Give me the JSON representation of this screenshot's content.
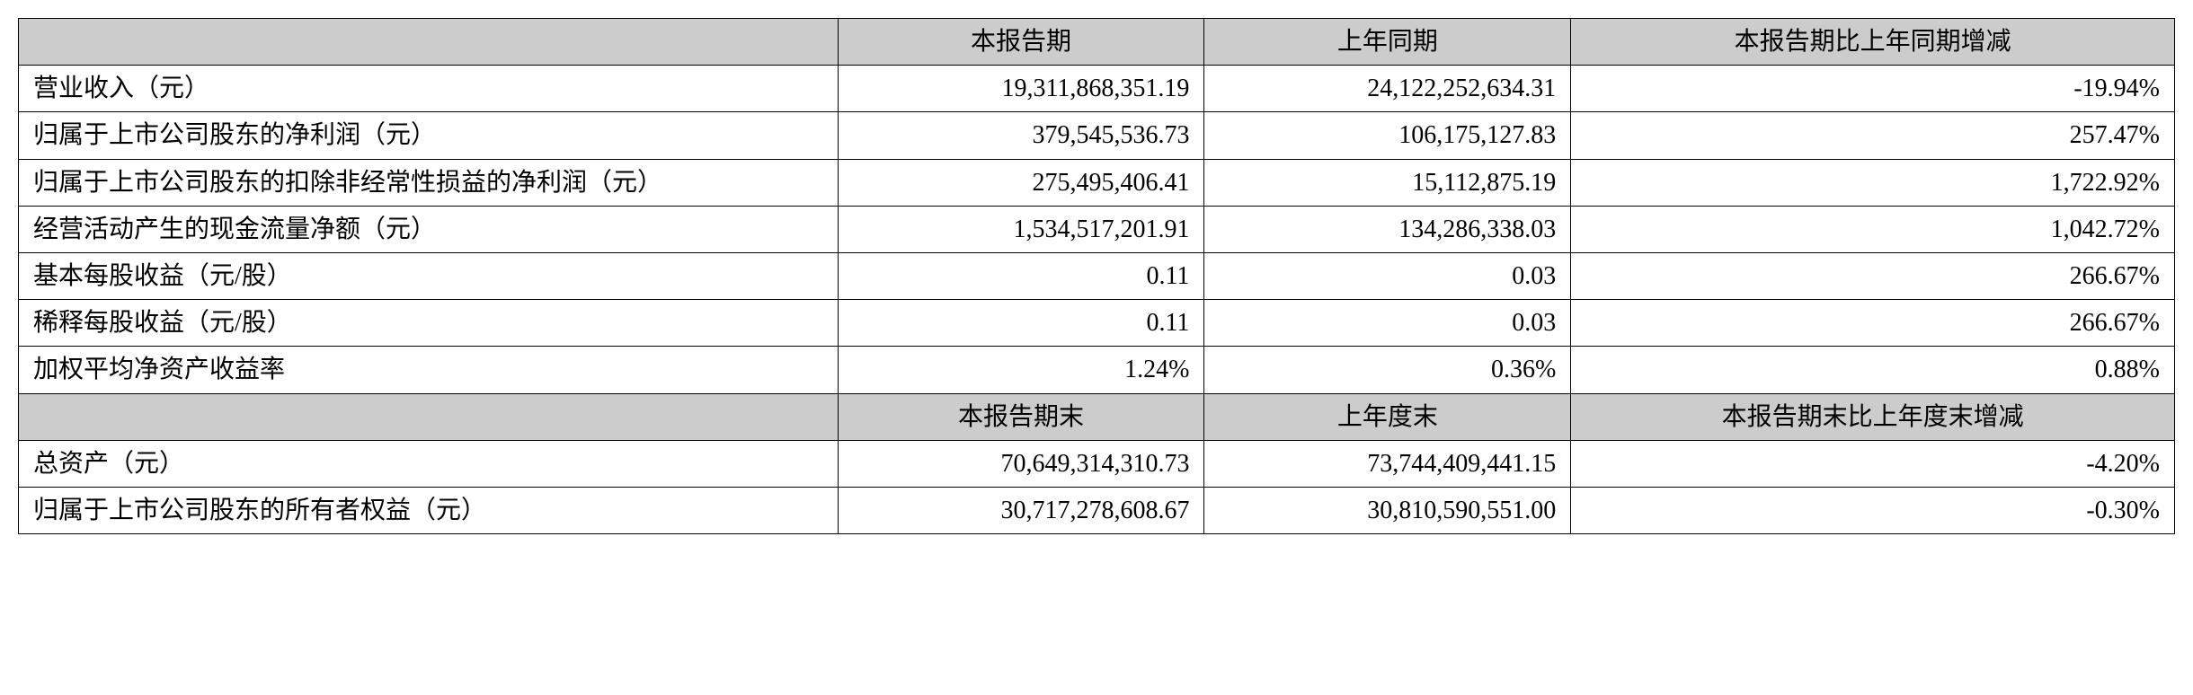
{
  "table": {
    "section1": {
      "headers": [
        "本报告期",
        "上年同期",
        "本报告期比上年同期增减"
      ],
      "rows": [
        {
          "label": "营业收入（元）",
          "current": "19,311,868,351.19",
          "prior": "24,122,252,634.31",
          "change": "-19.94%"
        },
        {
          "label": "归属于上市公司股东的净利润（元）",
          "current": "379,545,536.73",
          "prior": "106,175,127.83",
          "change": "257.47%"
        },
        {
          "label": "归属于上市公司股东的扣除非经常性损益的净利润（元）",
          "current": "275,495,406.41",
          "prior": "15,112,875.19",
          "change": "1,722.92%"
        },
        {
          "label": "经营活动产生的现金流量净额（元）",
          "current": "1,534,517,201.91",
          "prior": "134,286,338.03",
          "change": "1,042.72%"
        },
        {
          "label": "基本每股收益（元/股）",
          "current": "0.11",
          "prior": "0.03",
          "change": "266.67%"
        },
        {
          "label": "稀释每股收益（元/股）",
          "current": "0.11",
          "prior": "0.03",
          "change": "266.67%"
        },
        {
          "label": "加权平均净资产收益率",
          "current": "1.24%",
          "prior": "0.36%",
          "change": "0.88%"
        }
      ]
    },
    "section2": {
      "headers": [
        "本报告期末",
        "上年度末",
        "本报告期末比上年度末增减"
      ],
      "rows": [
        {
          "label": "总资产（元）",
          "current": "70,649,314,310.73",
          "prior": "73,744,409,441.15",
          "change": "-4.20%"
        },
        {
          "label": "归属于上市公司股东的所有者权益（元）",
          "current": "30,717,278,608.67",
          "prior": "30,810,590,551.00",
          "change": "-0.30%"
        }
      ]
    },
    "styling": {
      "header_bg": "#cccccc",
      "border_color": "#000000",
      "font_size": 28,
      "text_color": "#000000",
      "background_color": "#ffffff"
    }
  }
}
